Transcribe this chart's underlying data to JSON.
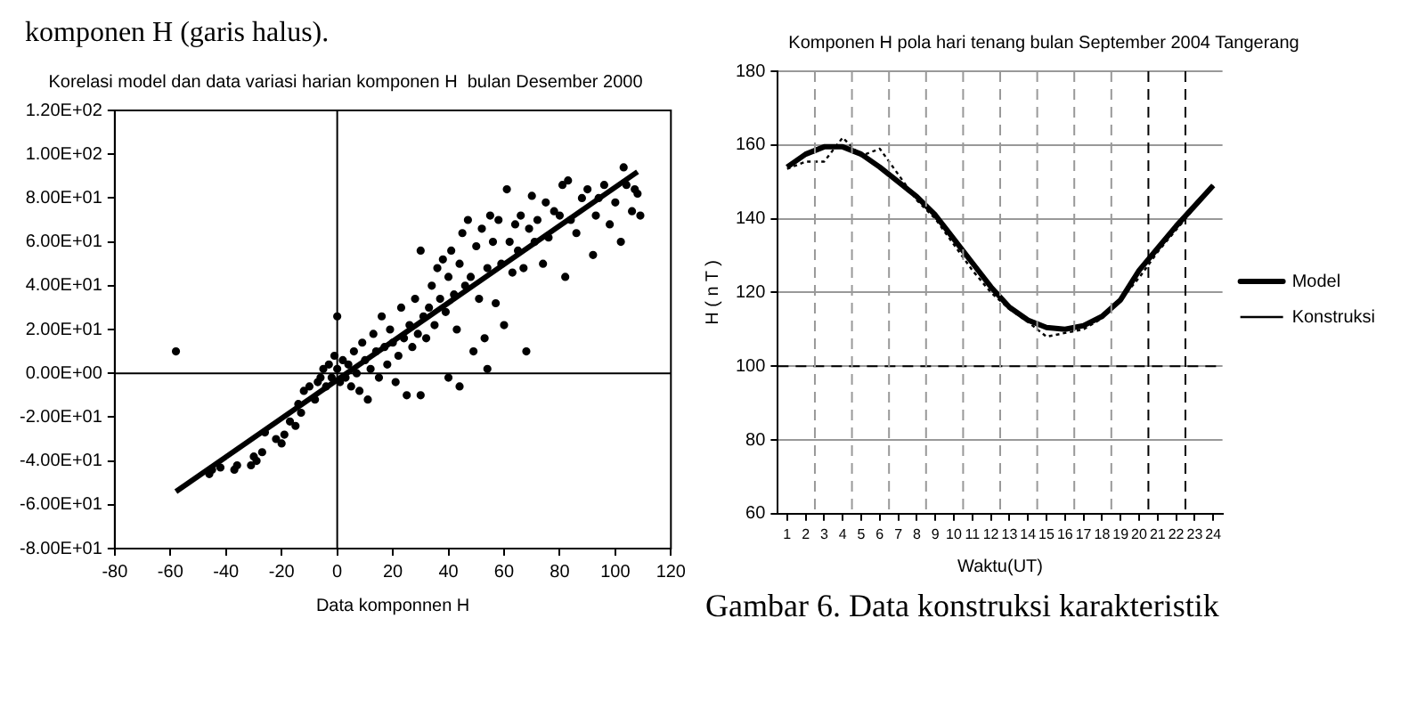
{
  "chart_data": [
    {
      "type": "scatter",
      "title": "Korelasi model dan data variasi harian komponen H  bulan Desember 2000",
      "xlabel": "Data komponnen H",
      "annotations": [
        "komponen H (garis halus)."
      ],
      "xlim": [
        -80,
        120
      ],
      "xticks": [
        -80,
        -60,
        -40,
        -20,
        0,
        20,
        40,
        60,
        80,
        100,
        120
      ],
      "ylim": [
        -80,
        120
      ],
      "yticks": [
        {
          "value": -80,
          "label": "-8.00E+01"
        },
        {
          "value": -60,
          "label": "-6.00E+01"
        },
        {
          "value": -40,
          "label": "-4.00E+01"
        },
        {
          "value": -20,
          "label": "-2.00E+01"
        },
        {
          "value": 0,
          "label": "0.00E+00"
        },
        {
          "value": 20,
          "label": "2.00E+01"
        },
        {
          "value": 40,
          "label": "4.00E+01"
        },
        {
          "value": 60,
          "label": "6.00E+01"
        },
        {
          "value": 80,
          "label": "8.00E+01"
        },
        {
          "value": 100,
          "label": "1.00E+02"
        },
        {
          "value": 120,
          "label": "1.20E+02"
        }
      ],
      "grid": false,
      "legend": false,
      "marker": "circle",
      "ref_lines": [
        {
          "axis": "x",
          "value": 0,
          "color": "#000000",
          "line_style": "solid"
        },
        {
          "axis": "y",
          "value": 0,
          "color": "#000000",
          "line_style": "solid"
        }
      ],
      "series": [
        {
          "color": "#000000",
          "x": [
            -58,
            -46,
            -45,
            -42,
            -37,
            -36,
            -31,
            -30,
            -29,
            -27,
            -26,
            -22,
            -20,
            -19,
            -17,
            -15,
            -14,
            -13,
            -12,
            -10,
            -8,
            -7,
            -6,
            -5,
            -4,
            -3,
            -2,
            -1,
            0,
            0,
            1,
            2,
            3,
            4,
            5,
            6,
            7,
            8,
            9,
            10,
            11,
            12,
            13,
            14,
            15,
            16,
            17,
            18,
            19,
            20,
            21,
            22,
            23,
            24,
            25,
            26,
            27,
            28,
            29,
            30,
            30,
            31,
            32,
            33,
            34,
            35,
            36,
            37,
            38,
            39,
            40,
            40,
            41,
            42,
            43,
            44,
            44,
            45,
            46,
            47,
            48,
            49,
            50,
            51,
            52,
            53,
            54,
            54,
            55,
            56,
            57,
            58,
            59,
            60,
            61,
            62,
            63,
            64,
            65,
            66,
            67,
            68,
            69,
            70,
            71,
            72,
            74,
            75,
            76,
            78,
            80,
            81,
            82,
            83,
            84,
            86,
            88,
            90,
            92,
            93,
            94,
            96,
            98,
            100,
            102,
            103,
            104,
            106,
            107,
            108,
            109
          ],
          "values": [
            10,
            -46,
            -44,
            -43,
            -44,
            -42,
            -42,
            -38,
            -40,
            -36,
            -27,
            -30,
            -32,
            -28,
            -22,
            -24,
            -14,
            -18,
            -8,
            -6,
            -12,
            -4,
            -2,
            2,
            -6,
            4,
            -2,
            8,
            26,
            2,
            -4,
            6,
            -2,
            4,
            -6,
            10,
            0,
            -8,
            14,
            6,
            -12,
            2,
            18,
            10,
            -2,
            26,
            12,
            4,
            20,
            14,
            -4,
            8,
            30,
            16,
            -10,
            22,
            12,
            34,
            18,
            -10,
            56,
            26,
            16,
            30,
            40,
            22,
            48,
            34,
            52,
            28,
            -2,
            44,
            56,
            36,
            20,
            -6,
            50,
            64,
            40,
            70,
            44,
            10,
            58,
            34,
            66,
            16,
            2,
            48,
            72,
            60,
            32,
            70,
            50,
            22,
            84,
            60,
            46,
            68,
            56,
            72,
            48,
            10,
            66,
            81,
            60,
            70,
            50,
            78,
            62,
            74,
            72,
            86,
            44,
            88,
            70,
            64,
            80,
            84,
            54,
            72,
            80,
            86,
            68,
            78,
            60,
            94,
            86,
            74,
            84,
            82,
            72
          ]
        },
        {
          "type": "line",
          "color": "#000000",
          "x": [
            -58,
            108
          ],
          "values": [
            -54,
            92
          ],
          "marker": "none",
          "line_style": "solid"
        }
      ]
    },
    {
      "type": "line",
      "title": "Komponen H pola hari tenang bulan September 2004 Tangerang",
      "xlabel": "Waktu(UT)",
      "ylabel": "H ( n T )",
      "annotations": [
        "Gambar 6. Data konstruksi karakteristik"
      ],
      "x": [
        1,
        2,
        3,
        4,
        5,
        6,
        7,
        8,
        9,
        10,
        11,
        12,
        13,
        14,
        15,
        16,
        17,
        18,
        19,
        20,
        21,
        22,
        23,
        24
      ],
      "xlim": [
        0.5,
        24.5
      ],
      "xticks": [
        1,
        2,
        3,
        4,
        5,
        6,
        7,
        8,
        9,
        10,
        11,
        12,
        13,
        14,
        15,
        16,
        17,
        18,
        19,
        20,
        21,
        22,
        23,
        24
      ],
      "ylim": [
        60,
        180
      ],
      "yticks": [
        60,
        80,
        100,
        120,
        140,
        160,
        180
      ],
      "grid": "y",
      "legend": "right",
      "marker": "none",
      "ref_lines": [
        {
          "axis": "y",
          "value": 100,
          "color": "#000000",
          "line_style": "dashed"
        },
        {
          "axis": "x",
          "value": 2.5,
          "color": "#999999",
          "line_style": "dashed"
        },
        {
          "axis": "x",
          "value": 4.5,
          "color": "#999999",
          "line_style": "dashed"
        },
        {
          "axis": "x",
          "value": 6.5,
          "color": "#999999",
          "line_style": "dashed"
        },
        {
          "axis": "x",
          "value": 8.5,
          "color": "#999999",
          "line_style": "dashed"
        },
        {
          "axis": "x",
          "value": 10.5,
          "color": "#999999",
          "line_style": "dashed"
        },
        {
          "axis": "x",
          "value": 12.5,
          "color": "#999999",
          "line_style": "dashed"
        },
        {
          "axis": "x",
          "value": 14.5,
          "color": "#999999",
          "line_style": "dashed"
        },
        {
          "axis": "x",
          "value": 16.5,
          "color": "#999999",
          "line_style": "dashed"
        },
        {
          "axis": "x",
          "value": 18.5,
          "color": "#999999",
          "line_style": "dashed"
        },
        {
          "axis": "x",
          "value": 20.5,
          "color": "#000000",
          "line_style": "dashed"
        },
        {
          "axis": "x",
          "value": 22.5,
          "color": "#000000",
          "line_style": "dashed"
        }
      ],
      "series": [
        {
          "name": "Model",
          "color": "#000000",
          "line_style": "solid",
          "values": [
            154,
            157.5,
            159.5,
            159.5,
            157.5,
            154,
            150,
            146,
            141,
            134.5,
            128,
            121.5,
            116,
            112.5,
            110.5,
            110,
            111,
            113.5,
            118,
            126,
            132,
            138,
            143.5,
            149
          ]
        },
        {
          "name": "Konstruksi",
          "color": "#000000",
          "line_style": "dotted",
          "values": [
            153.5,
            155.5,
            155.5,
            162,
            157,
            159,
            152,
            145,
            140,
            133,
            126,
            120,
            115.5,
            112,
            108,
            109,
            110,
            113,
            118,
            124,
            131,
            137,
            143,
            149
          ]
        }
      ]
    }
  ]
}
